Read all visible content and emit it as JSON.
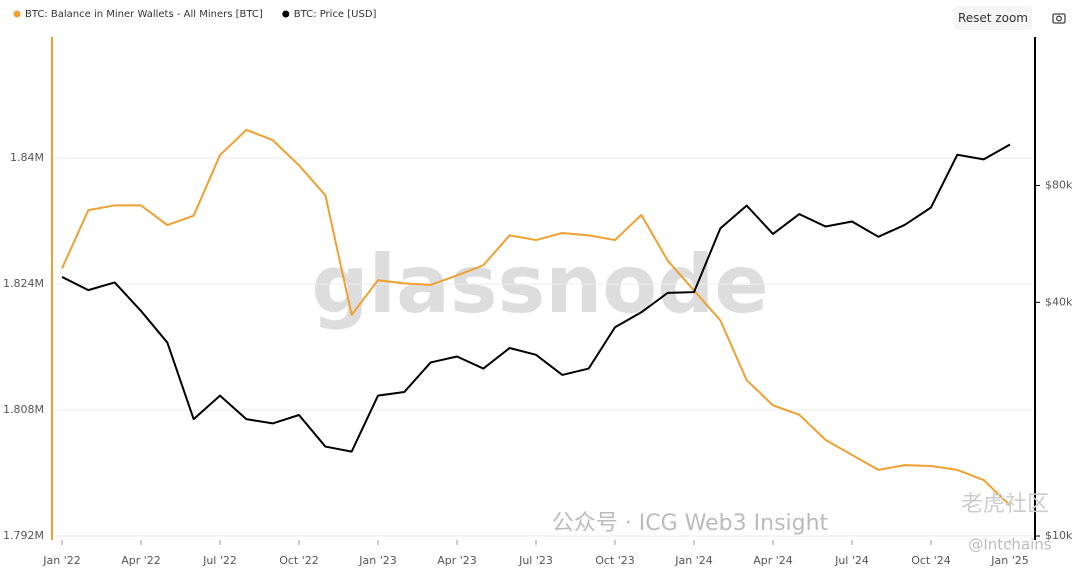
{
  "chart_data": {
    "type": "line",
    "series": [
      {
        "name": "BTC: Balance in Miner Wallets - All Miners [BTC]",
        "color": "#f0a030",
        "axis": "y",
        "values": [
          1826000,
          1833400,
          1834000,
          1834000,
          1831500,
          1832700,
          1840400,
          1843600,
          1842300,
          1839100,
          1835300,
          1820100,
          1824500,
          1824100,
          1823900,
          1825100,
          1826400,
          1830200,
          1829600,
          1830500,
          1830200,
          1829600,
          1832800,
          1827000,
          1823200,
          1819400,
          1811800,
          1808600,
          1807400,
          1804200,
          1802300,
          1800400,
          1801000,
          1800900,
          1800400,
          1799100,
          1795900
        ]
      },
      {
        "name": "BTC: Price [USD]",
        "color": "#000000",
        "axis": "y2",
        "values": [
          46500,
          43000,
          45000,
          38000,
          31500,
          20000,
          23000,
          20000,
          19500,
          20500,
          17000,
          16500,
          23000,
          23500,
          28000,
          29000,
          27000,
          30500,
          29300,
          26000,
          27000,
          34500,
          37700,
          42300,
          42500,
          62000,
          71000,
          60000,
          67500,
          62700,
          64600,
          59000,
          63300,
          70200,
          96000,
          93400,
          102000
        ]
      }
    ],
    "x": [
      "2022-01",
      "2022-02",
      "2022-03",
      "2022-04",
      "2022-05",
      "2022-06",
      "2022-07",
      "2022-08",
      "2022-09",
      "2022-10",
      "2022-11",
      "2022-12",
      "2023-01",
      "2023-02",
      "2023-03",
      "2023-04",
      "2023-05",
      "2023-06",
      "2023-07",
      "2023-08",
      "2023-09",
      "2023-10",
      "2023-11",
      "2023-12",
      "2024-01",
      "2024-02",
      "2024-03",
      "2024-04",
      "2024-05",
      "2024-06",
      "2024-07",
      "2024-08",
      "2024-09",
      "2024-10",
      "2024-11",
      "2024-12",
      "2025-01"
    ],
    "xlim": [
      "2022-01",
      "2025-01"
    ],
    "xticks": [
      {
        "value": "2022-01",
        "label": "Jan '22"
      },
      {
        "value": "2022-04",
        "label": "Apr '22"
      },
      {
        "value": "2022-07",
        "label": "Jul '22"
      },
      {
        "value": "2022-10",
        "label": "Oct '22"
      },
      {
        "value": "2023-01",
        "label": "Jan '23"
      },
      {
        "value": "2023-04",
        "label": "Apr '23"
      },
      {
        "value": "2023-07",
        "label": "Jul '23"
      },
      {
        "value": "2023-10",
        "label": "Oct '23"
      },
      {
        "value": "2024-01",
        "label": "Jan '24"
      },
      {
        "value": "2024-04",
        "label": "Apr '24"
      },
      {
        "value": "2024-07",
        "label": "Jul '24"
      },
      {
        "value": "2024-10",
        "label": "Oct '24"
      },
      {
        "value": "2025-01",
        "label": "Jan '25"
      }
    ],
    "ylim": [
      1792000,
      1855400
    ],
    "yticks": [
      {
        "value": 1792000,
        "label": "1.792M"
      },
      {
        "value": 1808000,
        "label": "1.808M"
      },
      {
        "value": 1824000,
        "label": "1.824M"
      },
      {
        "value": 1840000,
        "label": "1.84M"
      }
    ],
    "y2lim": [
      10000,
      193000
    ],
    "y2log": true,
    "y2ticks": [
      {
        "value": 10000,
        "label": "$10k"
      },
      {
        "value": 40000,
        "label": "$40k"
      },
      {
        "value": 80000,
        "label": "$80k"
      }
    ],
    "grid": true,
    "watermark": "glassnode",
    "reset_button": "Reset zoom",
    "overlays": [
      "公众号 · ICG Web3 Insight",
      "@Intchains",
      "老虎社区"
    ]
  }
}
